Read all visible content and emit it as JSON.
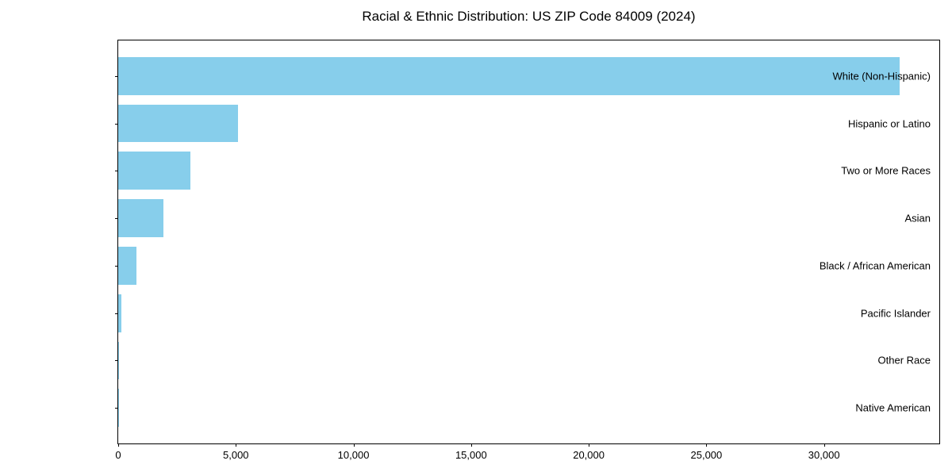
{
  "chart": {
    "title": "Racial & Ethnic Distribution: US ZIP Code 84009 (2024)"
  },
  "chart_data": {
    "type": "bar",
    "orientation": "horizontal",
    "title": "Racial & Ethnic Distribution: US ZIP Code 84009 (2024)",
    "xlabel": "",
    "ylabel": "",
    "categories": [
      "White (Non-Hispanic)",
      "Hispanic or Latino",
      "Two or More Races",
      "Asian",
      "Black / African American",
      "Pacific Islander",
      "Other Race",
      "Native American"
    ],
    "values": [
      33230,
      5080,
      3060,
      1920,
      775,
      120,
      35,
      12
    ],
    "xlim": [
      0,
      34900
    ],
    "x_ticks": [
      0,
      5000,
      10000,
      15000,
      20000,
      25000,
      30000
    ],
    "x_tick_labels": [
      "0",
      "5,000",
      "10,000",
      "15,000",
      "20,000",
      "25,000",
      "30,000"
    ],
    "bar_color": "#87CEEB",
    "frame_color": "#000000",
    "grid": false,
    "legend_position": "none",
    "bar_height_fraction": 0.8
  }
}
